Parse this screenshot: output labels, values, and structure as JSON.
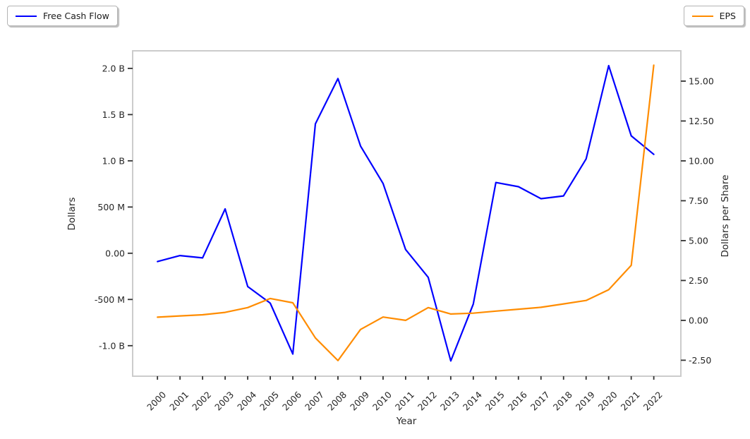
{
  "colors": {
    "fcf_line": "#0000ff",
    "eps_line": "#ff8c00",
    "spine": "#cccccc",
    "tick": "#333333",
    "text": "#262626",
    "background": "#ffffff"
  },
  "chart_data": {
    "type": "line",
    "title": "",
    "xlabel": "Year",
    "ylabel_left": "Dollars",
    "ylabel_right": "Dollars per Share",
    "x": [
      2000,
      2001,
      2002,
      2003,
      2004,
      2005,
      2006,
      2007,
      2008,
      2009,
      2010,
      2011,
      2012,
      2013,
      2014,
      2015,
      2016,
      2017,
      2018,
      2019,
      2020,
      2021,
      2022
    ],
    "series": [
      {
        "name": "Free Cash Flow",
        "axis": "left",
        "unit": "million USD",
        "color": "#0000ff",
        "values": [
          -90,
          -25,
          -50,
          480,
          -360,
          -540,
          -1090,
          1400,
          1890,
          1160,
          755,
          40,
          -260,
          -1165,
          -550,
          765,
          720,
          590,
          620,
          1020,
          2030,
          1270,
          1070
        ]
      },
      {
        "name": "EPS",
        "axis": "right",
        "unit": "USD per share",
        "color": "#ff8c00",
        "values": [
          0.2,
          0.28,
          0.35,
          0.5,
          0.8,
          1.37,
          1.1,
          -1.1,
          -2.52,
          -0.57,
          0.21,
          0.0,
          0.8,
          0.4,
          0.45,
          0.58,
          0.7,
          0.82,
          1.03,
          1.25,
          1.92,
          3.45,
          16.0
        ]
      }
    ],
    "xlim": [
      1998.9,
      2023.2
    ],
    "ylim_left": [
      -1330,
      2190
    ],
    "ylim_right": [
      -3.5,
      16.9
    ],
    "xticks": [
      2000,
      2001,
      2002,
      2003,
      2004,
      2005,
      2006,
      2007,
      2008,
      2009,
      2010,
      2011,
      2012,
      2013,
      2014,
      2015,
      2016,
      2017,
      2018,
      2019,
      2020,
      2021,
      2022
    ],
    "yticks_left": {
      "values": [
        2000,
        1500,
        1000,
        500,
        0,
        -500,
        -1000
      ],
      "labels": [
        "2.0 B",
        "1.5 B",
        "1.0 B",
        "500 M",
        "0.00",
        "-500 M",
        "-1.0 B"
      ]
    },
    "yticks_right": {
      "values": [
        15,
        12.5,
        10,
        7.5,
        5,
        2.5,
        0,
        -2.5
      ],
      "labels": [
        "15.00",
        "12.50",
        "10.00",
        "7.50",
        "5.00",
        "2.50",
        "0.00",
        "-2.50"
      ]
    },
    "grid": false,
    "legend": [
      {
        "label": "Free Cash Flow",
        "position": "top-left-outside"
      },
      {
        "label": "EPS",
        "position": "top-right-outside"
      }
    ]
  }
}
